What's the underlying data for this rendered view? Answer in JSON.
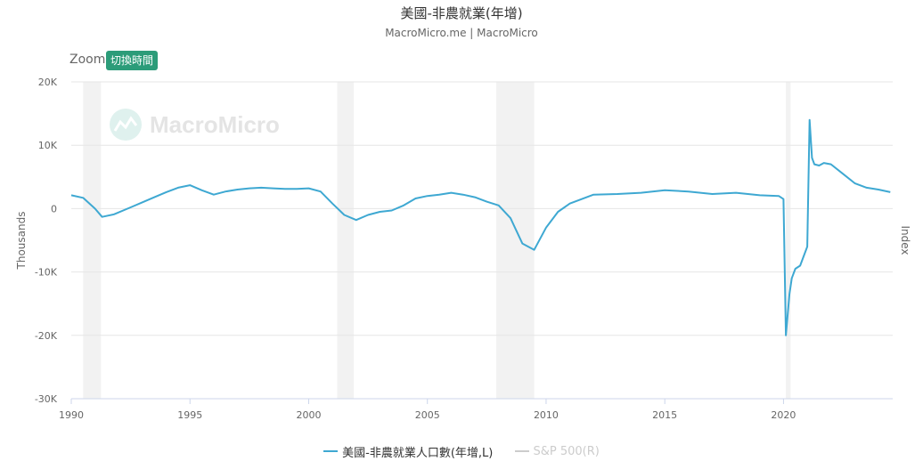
{
  "header": {
    "title": "美國-非農就業(年增)",
    "subtitle": "MacroMicro.me | MacroMicro"
  },
  "toolbar": {
    "zoom_label": "Zoom",
    "switch_label": "切換時間"
  },
  "watermark": {
    "text": "MacroMicro"
  },
  "colors": {
    "series": "#3ea8d2",
    "recession": "#f2f2f2",
    "grid": "#e6e6e6",
    "accent": "#2c9c79",
    "legend_inactive": "#cccccc"
  },
  "chart_data": {
    "type": "line",
    "xlabel": "",
    "ylabel": "Thousands",
    "y2label": "Index",
    "xlim": [
      1990,
      2024.6
    ],
    "ylim": [
      -30000,
      20000
    ],
    "x_ticks": [
      "1990",
      "1995",
      "2000",
      "2005",
      "2010",
      "2015",
      "2020"
    ],
    "x_tick_values": [
      1990,
      1995,
      2000,
      2005,
      2010,
      2015,
      2020
    ],
    "y_ticks": [
      "20K",
      "10K",
      "0",
      "-10K",
      "-20K",
      "-30K"
    ],
    "y_tick_values": [
      20000,
      10000,
      0,
      -10000,
      -20000,
      -30000
    ],
    "recessions": [
      [
        1990.5,
        1991.25
      ],
      [
        2001.2,
        2001.9
      ],
      [
        2007.9,
        2009.5
      ],
      [
        2020.1,
        2020.3
      ]
    ],
    "legend_position": "bottom",
    "legend": [
      {
        "label": "美國-非農就業人口數(年增,L)",
        "active": true
      },
      {
        "label": "S&P 500(R)",
        "active": false
      }
    ],
    "series": [
      {
        "name": "美國-非農就業人口數(年增,L)",
        "x": [
          1990.0,
          1990.5,
          1991.0,
          1991.3,
          1991.8,
          1992.5,
          1993.0,
          1993.5,
          1994.0,
          1994.5,
          1995.0,
          1995.5,
          1996.0,
          1996.5,
          1997.0,
          1997.5,
          1998.0,
          1998.5,
          1999.0,
          1999.5,
          2000.0,
          2000.5,
          2001.0,
          2001.5,
          2002.0,
          2002.5,
          2003.0,
          2003.5,
          2004.0,
          2004.5,
          2005.0,
          2005.5,
          2006.0,
          2006.5,
          2007.0,
          2007.5,
          2008.0,
          2008.5,
          2009.0,
          2009.5,
          2010.0,
          2010.5,
          2011.0,
          2011.5,
          2012.0,
          2013.0,
          2014.0,
          2015.0,
          2016.0,
          2017.0,
          2018.0,
          2019.0,
          2019.8,
          2020.0,
          2020.1,
          2020.25,
          2020.35,
          2020.5,
          2020.7,
          2021.0,
          2021.1,
          2021.2,
          2021.3,
          2021.5,
          2021.7,
          2022.0,
          2022.5,
          2023.0,
          2023.5,
          2024.0,
          2024.5
        ],
        "values": [
          2100,
          1700,
          0,
          -1300,
          -900,
          200,
          1000,
          1800,
          2600,
          3300,
          3700,
          2900,
          2200,
          2700,
          3000,
          3200,
          3300,
          3200,
          3100,
          3100,
          3200,
          2700,
          800,
          -1000,
          -1800,
          -1000,
          -500,
          -300,
          500,
          1600,
          2000,
          2200,
          2500,
          2200,
          1800,
          1100,
          500,
          -1500,
          -5500,
          -6500,
          -3000,
          -500,
          800,
          1500,
          2200,
          2300,
          2500,
          2900,
          2700,
          2300,
          2500,
          2100,
          2000,
          1500,
          -20000,
          -13500,
          -11000,
          -9500,
          -9000,
          -6000,
          14000,
          8000,
          7000,
          6800,
          7200,
          7000,
          5500,
          4000,
          3300,
          3000,
          2600
        ]
      }
    ]
  }
}
